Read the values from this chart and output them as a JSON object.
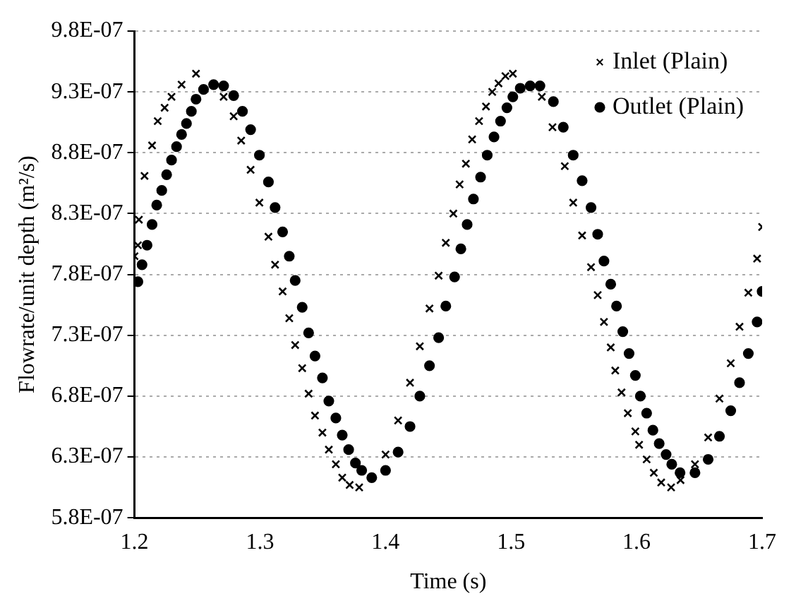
{
  "chart_data": {
    "type": "scatter",
    "xlabel": "Time (s)",
    "ylabel": "Flowrate/unit depth (m²/s)",
    "xlim": [
      1.2,
      1.7
    ],
    "xticks": [
      1.2,
      1.3,
      1.4,
      1.5,
      1.6,
      1.7
    ],
    "ylim": [
      5.8e-07,
      9.8e-07
    ],
    "yticks": [
      {
        "value": 5.8e-07,
        "label": "5.8E-07"
      },
      {
        "value": 6.3e-07,
        "label": "6.3E-07"
      },
      {
        "value": 6.8e-07,
        "label": "6.8E-07"
      },
      {
        "value": 7.3e-07,
        "label": "7.3E-07"
      },
      {
        "value": 7.8e-07,
        "label": "7.8E-07"
      },
      {
        "value": 8.3e-07,
        "label": "8.3E-07"
      },
      {
        "value": 8.8e-07,
        "label": "8.8E-07"
      },
      {
        "value": 9.3e-07,
        "label": "9.3E-07"
      },
      {
        "value": 9.8e-07,
        "label": "9.8E-07"
      }
    ],
    "grid": "y",
    "legend": "top right",
    "series": [
      {
        "name": "Inlet (Plain)",
        "color": "#000000",
        "marker": "cross",
        "x": [
          1.2,
          1.2027,
          1.2035,
          1.208,
          1.214,
          1.2185,
          1.224,
          1.2295,
          1.2375,
          1.249,
          1.271,
          1.279,
          1.285,
          1.2925,
          1.2995,
          1.3067,
          1.312,
          1.318,
          1.3233,
          1.328,
          1.3336,
          1.3387,
          1.3438,
          1.3497,
          1.3548,
          1.3604,
          1.3655,
          1.3714,
          1.379,
          1.4,
          1.41,
          1.4195,
          1.4273,
          1.435,
          1.4423,
          1.448,
          1.454,
          1.459,
          1.464,
          1.469,
          1.4745,
          1.48,
          1.485,
          1.49,
          1.4955,
          1.5014,
          1.5245,
          1.533,
          1.5428,
          1.5495,
          1.5566,
          1.5637,
          1.569,
          1.574,
          1.5794,
          1.583,
          1.588,
          1.593,
          1.599,
          1.602,
          1.608,
          1.6137,
          1.6196,
          1.6275,
          1.635,
          1.6465,
          1.657,
          1.666,
          1.675,
          1.682,
          1.689,
          1.696,
          1.7
        ],
        "values": [
          7.95e-07,
          8.04e-07,
          8.25e-07,
          8.61e-07,
          8.86e-07,
          9.06e-07,
          9.17e-07,
          9.26e-07,
          9.36e-07,
          9.45e-07,
          9.26e-07,
          9.1e-07,
          8.9e-07,
          8.66e-07,
          8.39e-07,
          8.11e-07,
          7.88e-07,
          7.66e-07,
          7.44e-07,
          7.22e-07,
          7.03e-07,
          6.82e-07,
          6.64e-07,
          6.5e-07,
          6.36e-07,
          6.24e-07,
          6.13e-07,
          6.07e-07,
          6.05e-07,
          6.32e-07,
          6.6e-07,
          6.91e-07,
          7.21e-07,
          7.52e-07,
          7.79e-07,
          8.06e-07,
          8.3e-07,
          8.54e-07,
          8.71e-07,
          8.91e-07,
          9.06e-07,
          9.18e-07,
          9.3e-07,
          9.37e-07,
          9.43e-07,
          9.45e-07,
          9.26e-07,
          9.01e-07,
          8.69e-07,
          8.39e-07,
          8.12e-07,
          7.86e-07,
          7.63e-07,
          7.41e-07,
          7.2e-07,
          7.01e-07,
          6.83e-07,
          6.66e-07,
          6.51e-07,
          6.4e-07,
          6.28e-07,
          6.17e-07,
          6.09e-07,
          6.05e-07,
          6.11e-07,
          6.24e-07,
          6.46e-07,
          6.78e-07,
          7.07e-07,
          7.37e-07,
          7.65e-07,
          7.93e-07,
          8.19e-07
        ]
      },
      {
        "name": "Outlet (Plain)",
        "color": "#000000",
        "marker": "circle",
        "x": [
          1.2027,
          1.206,
          1.21,
          1.214,
          1.2177,
          1.2217,
          1.2256,
          1.2295,
          1.2335,
          1.2375,
          1.2414,
          1.2453,
          1.249,
          1.255,
          1.263,
          1.271,
          1.279,
          1.286,
          1.2925,
          1.2995,
          1.3067,
          1.312,
          1.318,
          1.3233,
          1.328,
          1.3336,
          1.3387,
          1.3438,
          1.3497,
          1.3548,
          1.3604,
          1.3655,
          1.3706,
          1.376,
          1.381,
          1.389,
          1.4,
          1.41,
          1.4195,
          1.4273,
          1.435,
          1.4423,
          1.448,
          1.455,
          1.46,
          1.465,
          1.47,
          1.4757,
          1.481,
          1.4864,
          1.4916,
          1.4967,
          1.5014,
          1.5073,
          1.5152,
          1.523,
          1.5337,
          1.5416,
          1.5495,
          1.5566,
          1.5637,
          1.569,
          1.574,
          1.5794,
          1.584,
          1.589,
          1.594,
          1.599,
          1.603,
          1.608,
          1.613,
          1.618,
          1.6235,
          1.628,
          1.6346,
          1.6465,
          1.657,
          1.666,
          1.675,
          1.682,
          1.689,
          1.696,
          1.7
        ],
        "values": [
          7.74e-07,
          7.88e-07,
          8.04e-07,
          8.21e-07,
          8.37e-07,
          8.49e-07,
          8.62e-07,
          8.74e-07,
          8.85e-07,
          8.95e-07,
          9.04e-07,
          9.14e-07,
          9.24e-07,
          9.32e-07,
          9.36e-07,
          9.35e-07,
          9.27e-07,
          9.14e-07,
          8.99e-07,
          8.78e-07,
          8.56e-07,
          8.35e-07,
          8.15e-07,
          7.95e-07,
          7.75e-07,
          7.53e-07,
          7.32e-07,
          7.13e-07,
          6.95e-07,
          6.76e-07,
          6.62e-07,
          6.48e-07,
          6.36e-07,
          6.25e-07,
          6.19e-07,
          6.13e-07,
          6.19e-07,
          6.34e-07,
          6.55e-07,
          6.8e-07,
          7.05e-07,
          7.28e-07,
          7.54e-07,
          7.78e-07,
          8.01e-07,
          8.21e-07,
          8.42e-07,
          8.6e-07,
          8.78e-07,
          8.93e-07,
          9.06e-07,
          9.17e-07,
          9.26e-07,
          9.33e-07,
          9.35e-07,
          9.35e-07,
          9.22e-07,
          9.01e-07,
          8.78e-07,
          8.57e-07,
          8.35e-07,
          8.13e-07,
          7.91e-07,
          7.72e-07,
          7.54e-07,
          7.33e-07,
          7.15e-07,
          6.97e-07,
          6.8e-07,
          6.66e-07,
          6.52e-07,
          6.41e-07,
          6.32e-07,
          6.24e-07,
          6.17e-07,
          6.17e-07,
          6.28e-07,
          6.47e-07,
          6.68e-07,
          6.91e-07,
          7.15e-07,
          7.41e-07,
          7.66e-07
        ]
      }
    ]
  }
}
